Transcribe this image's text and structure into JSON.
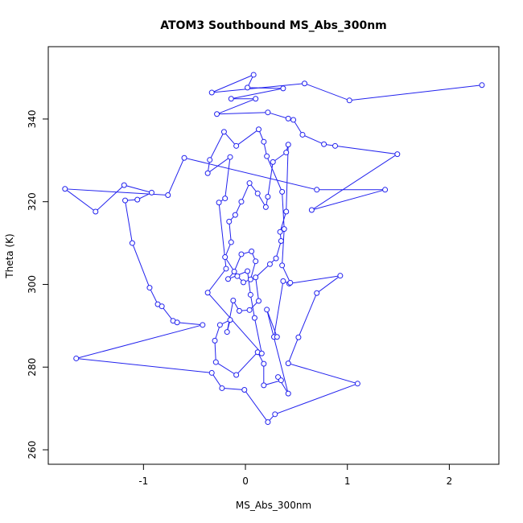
{
  "chart_data": {
    "type": "line-points",
    "title": "ATOM3 Southbound MS_Abs_300nm",
    "x_label": "MS_Abs_300nm",
    "y_label": "Theta (K)",
    "color": "#2222ee",
    "x": [
      2.32,
      1.02,
      0.58,
      -0.33,
      0.08,
      0.02,
      0.37,
      -0.14,
      0.1,
      -0.28,
      0.22,
      0.42,
      0.47,
      0.56,
      0.77,
      0.88,
      1.49,
      0.65,
      1.37,
      0.7,
      -0.6,
      -0.76,
      -1.77,
      -1.47,
      -1.19,
      -0.92,
      -1.06,
      -1.18,
      -1.11,
      -0.94,
      -0.86,
      -0.82,
      -0.71,
      -0.67,
      -0.42,
      -1.66,
      -0.33,
      -0.23,
      -0.01,
      0.22,
      0.29,
      1.1,
      0.42,
      0.52,
      0.7,
      0.93,
      0.43,
      0.37,
      0.28,
      0.31,
      0.21,
      0.42,
      0.32,
      0.35,
      0.18,
      0.18,
      0.12,
      -0.09,
      -0.29,
      -0.3,
      -0.25,
      -0.15,
      -0.18,
      -0.12,
      -0.06,
      0.04,
      0.13,
      0.1,
      0.24,
      0.3,
      0.35,
      0.34,
      0.4,
      0.42,
      0.4,
      0.27,
      0.22,
      0.2,
      0.12,
      0.04,
      -0.04,
      -0.1,
      -0.16,
      -0.14,
      -0.2,
      -0.08,
      -0.02,
      0.05,
      0.1,
      0.06,
      -0.04,
      -0.11,
      -0.17,
      0.02,
      0.05,
      0.09,
      0.16,
      -0.37,
      -0.19,
      -0.26,
      -0.2,
      -0.15,
      -0.37,
      -0.35,
      -0.21,
      -0.09,
      0.13,
      0.18,
      0.21,
      0.36,
      0.38,
      0.36,
      0.44
    ],
    "y": [
      348.2,
      344.5,
      348.6,
      346.4,
      350.7,
      347.6,
      347.4,
      344.9,
      344.9,
      341.2,
      341.6,
      340.1,
      339.8,
      336.2,
      333.9,
      333.5,
      331.5,
      318,
      322.9,
      322.9,
      330.6,
      321.6,
      323.1,
      317.6,
      324,
      322.2,
      320.5,
      320.3,
      310,
      299.2,
      295.2,
      294.7,
      291.2,
      290.8,
      290.2,
      282.1,
      278.6,
      274.9,
      274.5,
      266.7,
      268.6,
      276,
      280.9,
      287.2,
      297.9,
      302.1,
      300.2,
      300.8,
      287.3,
      287.3,
      293.9,
      273.6,
      277.6,
      276.8,
      275.6,
      280.8,
      283.6,
      278.1,
      281.2,
      286.4,
      290.2,
      291.4,
      288.5,
      296.1,
      293.6,
      293.8,
      296,
      301.7,
      304.9,
      306.3,
      310.5,
      312.7,
      317.6,
      333.8,
      331.9,
      329.6,
      321.2,
      318.7,
      322,
      324.5,
      320,
      316.8,
      315.2,
      310.2,
      306.6,
      302,
      300.5,
      301.2,
      305.6,
      308,
      307.3,
      303.1,
      301.3,
      303.2,
      297.5,
      291.9,
      283.3,
      298,
      303.8,
      319.8,
      320.8,
      330.8,
      326.9,
      330.1,
      336.9,
      333.5,
      337.5,
      334.5,
      331,
      322.4,
      313.4,
      304.6,
      300.4
    ],
    "xlim": [
      -1.934,
      2.486
    ],
    "ylim": [
      256.5,
      357.5
    ],
    "xticks": [
      -1,
      0,
      1,
      2
    ],
    "yticks": [
      260,
      280,
      300,
      320,
      340
    ]
  }
}
